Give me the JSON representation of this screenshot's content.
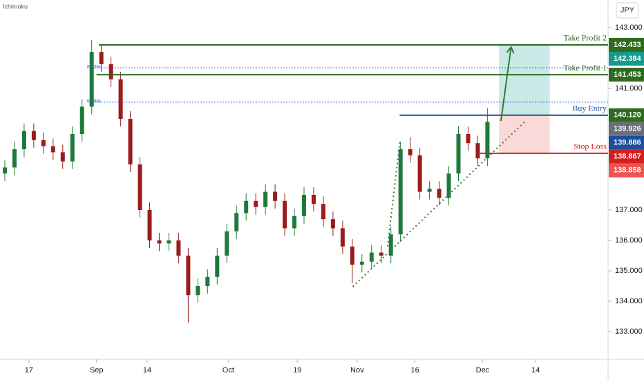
{
  "ui": {
    "indicator": "Ichimoku",
    "currency": "JPY"
  },
  "chart_data": {
    "type": "candlestick",
    "x": [
      -4,
      -2,
      0,
      2,
      4,
      6,
      8,
      10,
      12,
      14,
      16,
      18,
      20,
      22,
      24,
      26,
      28,
      30,
      32,
      34,
      36,
      38,
      40,
      42,
      44,
      46,
      48,
      50,
      52,
      54,
      56,
      58,
      60,
      62,
      64,
      66,
      68,
      70,
      72,
      74,
      76,
      78,
      80,
      82,
      84,
      86,
      88,
      90,
      92,
      94,
      96
    ],
    "open": [
      138.2,
      138.4,
      139.0,
      139.6,
      139.3,
      139.1,
      138.9,
      138.6,
      139.5,
      140.4,
      142.2,
      141.8,
      141.3,
      140.0,
      138.5,
      137.0,
      136.0,
      135.9,
      136.0,
      135.5,
      134.2,
      134.5,
      134.8,
      135.5,
      136.3,
      136.9,
      137.3,
      137.1,
      137.6,
      137.3,
      136.4,
      136.8,
      137.5,
      137.2,
      136.7,
      136.4,
      135.8,
      135.2,
      135.3,
      135.6,
      135.5,
      136.2,
      139.0,
      138.8,
      137.6,
      137.7,
      137.4,
      138.2,
      139.5,
      139.2,
      138.7
    ],
    "high": [
      138.65,
      139.25,
      139.85,
      139.85,
      139.55,
      139.35,
      139.15,
      139.75,
      140.65,
      142.6,
      142.45,
      142.05,
      141.55,
      140.25,
      138.75,
      137.25,
      136.25,
      136.25,
      136.25,
      135.75,
      134.75,
      135.05,
      135.75,
      136.55,
      137.15,
      137.55,
      137.55,
      137.85,
      137.85,
      137.55,
      137.05,
      137.75,
      137.75,
      137.45,
      136.95,
      136.65,
      136.05,
      135.55,
      135.85,
      135.85,
      136.45,
      139.25,
      139.4,
      139.05,
      137.95,
      137.95,
      138.45,
      139.75,
      139.75,
      139.45,
      140.35
    ],
    "low": [
      137.95,
      138.15,
      138.75,
      139.05,
      138.85,
      138.65,
      138.35,
      138.35,
      139.25,
      140.15,
      141.55,
      141.05,
      139.75,
      138.25,
      136.75,
      135.75,
      135.65,
      135.65,
      135.25,
      133.3,
      133.95,
      134.25,
      134.55,
      135.25,
      136.05,
      136.65,
      136.85,
      136.85,
      137.05,
      136.15,
      136.15,
      136.55,
      136.95,
      136.45,
      136.15,
      135.55,
      134.6,
      134.95,
      135.05,
      135.25,
      135.25,
      135.95,
      138.55,
      137.35,
      137.35,
      137.15,
      137.15,
      137.95,
      138.95,
      138.45,
      138.45
    ],
    "close": [
      138.4,
      139.0,
      139.6,
      139.3,
      139.1,
      138.9,
      138.6,
      139.5,
      140.4,
      142.2,
      141.8,
      141.3,
      140.0,
      138.5,
      137.0,
      136.0,
      135.9,
      136.0,
      135.5,
      134.2,
      134.5,
      134.8,
      135.5,
      136.3,
      136.9,
      137.3,
      137.1,
      137.6,
      137.3,
      136.4,
      136.8,
      137.5,
      137.2,
      136.7,
      136.4,
      135.8,
      135.2,
      135.3,
      135.6,
      135.5,
      136.2,
      139.0,
      138.8,
      137.6,
      137.7,
      137.4,
      138.2,
      139.5,
      139.2,
      138.7,
      139.9
    ],
    "up_color": "#1e7a3c",
    "down_color": "#9b1c1c",
    "xlim": [
      -5,
      121
    ],
    "xticks": [
      {
        "value": 1,
        "label": "17"
      },
      {
        "value": 15,
        "label": "Sep"
      },
      {
        "value": 25.5,
        "label": "14"
      },
      {
        "value": 42.3,
        "label": "Oct"
      },
      {
        "value": 56.6,
        "label": "19"
      },
      {
        "value": 69,
        "label": "Nov"
      },
      {
        "value": 81,
        "label": "16"
      },
      {
        "value": 95,
        "label": "Dec"
      },
      {
        "value": 106,
        "label": "14"
      }
    ],
    "ylim": [
      132.09,
      143.91
    ],
    "yticks": [
      {
        "value": 143,
        "label": "143.000"
      },
      {
        "value": 141,
        "label": "141.000"
      },
      {
        "value": 137,
        "label": "137.000"
      },
      {
        "value": 136,
        "label": "136.000"
      },
      {
        "value": 135,
        "label": "135.000"
      },
      {
        "value": 134,
        "label": "134.000"
      },
      {
        "value": 133,
        "label": "133.000"
      }
    ],
    "levels": [
      {
        "name": "Take Profit 2",
        "value": 142.433,
        "color": "#2e6b1e",
        "start": 15.5
      },
      {
        "name": "Take Profit 1",
        "value": 141.453,
        "color": "#2e6b1e",
        "start": 15.0
      },
      {
        "name": "Buy Entry",
        "value": 140.12,
        "color": "#1c4f9c",
        "start": 77.8
      },
      {
        "name": "Stop Loss",
        "value": 138.867,
        "color": "#d32020",
        "start": 94.5
      }
    ],
    "fib_levels": [
      {
        "label": "88.2%",
        "value": 141.68,
        "start": 13.6
      },
      {
        "label": "61.8%",
        "value": 140.55,
        "start": 13.6
      }
    ],
    "price_badges": [
      {
        "value": 142.433,
        "label": "142.433",
        "color": "#2e6b1e"
      },
      {
        "value": 142.384,
        "label": "142.384",
        "color": "#159a8c"
      },
      {
        "value": 141.453,
        "label": "141.453",
        "color": "#2e6b1e"
      },
      {
        "value": 140.12,
        "label": "140.120",
        "color": "#2e6b1e"
      },
      {
        "value": 139.926,
        "label": "139.926",
        "color": "#6b6e76"
      },
      {
        "value": 139.886,
        "label": "139.886",
        "color": "#1c4f9c"
      },
      {
        "value": 138.867,
        "label": "138.867",
        "color": "#d32020"
      },
      {
        "value": 138.858,
        "label": "138.858",
        "color": "#ef5350"
      }
    ],
    "trade_box": {
      "x": [
        98.4,
        108.9
      ],
      "entry": 140.12,
      "target": 142.433,
      "stop": 138.867
    },
    "trendlines": [
      {
        "x": [
          68.1,
          103.9
        ],
        "y": [
          134.48,
          139.93
        ]
      },
      {
        "x": [
          75.3,
          77.9
        ],
        "y": [
          135.8,
          139.3
        ]
      }
    ],
    "arrow": {
      "x": [
        98.8,
        100.9
      ],
      "y": [
        139.93,
        142.36
      ]
    }
  }
}
